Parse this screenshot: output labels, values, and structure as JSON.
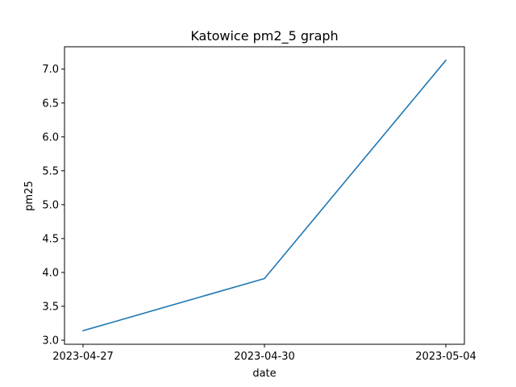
{
  "chart_data": {
    "type": "line",
    "title": "Katowice pm2_5 graph",
    "xlabel": "date",
    "ylabel": "pm25",
    "categories": [
      "2023-04-27",
      "2023-04-30",
      "2023-05-04"
    ],
    "series": [
      {
        "values": [
          3.14,
          3.91,
          7.13
        ],
        "color": "#1f77b4"
      }
    ],
    "ylim": [
      2.94,
      7.33
    ],
    "yticks": [
      3.0,
      3.5,
      4.0,
      4.5,
      5.0,
      5.5,
      6.0,
      6.5,
      7.0
    ],
    "ytick_labels": [
      "3.0",
      "3.5",
      "4.0",
      "4.5",
      "5.0",
      "5.5",
      "6.0",
      "6.5",
      "7.0"
    ],
    "grid": false,
    "legend": "none"
  }
}
